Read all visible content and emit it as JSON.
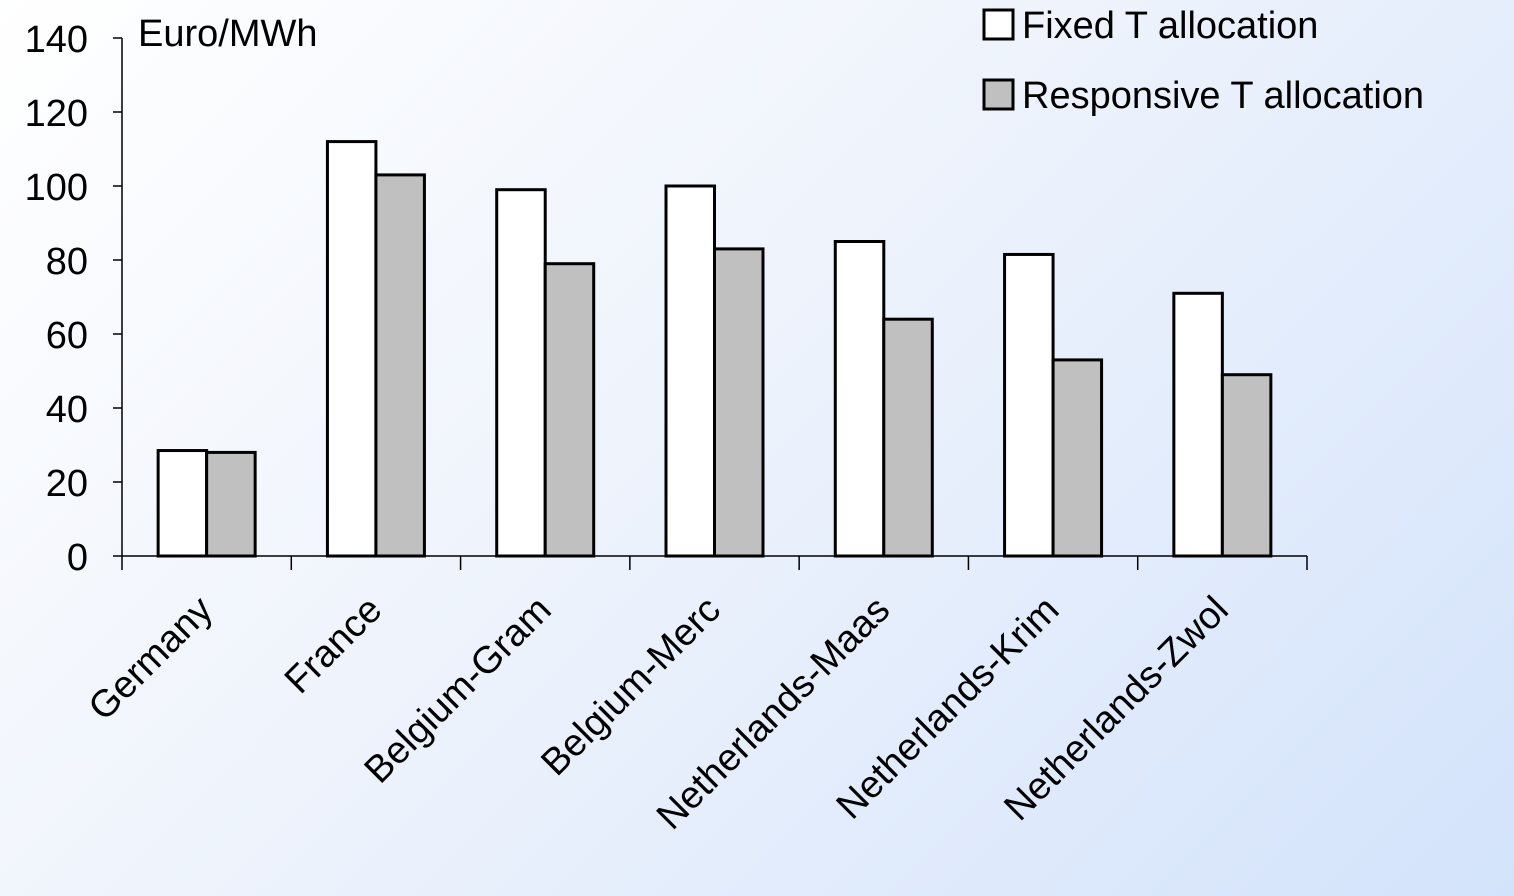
{
  "chart_data": {
    "type": "bar",
    "ylabel": "Euro/MWh",
    "ylim": [
      0,
      140
    ],
    "yticks": [
      0,
      20,
      40,
      60,
      80,
      100,
      120,
      140
    ],
    "categories": [
      "Germany",
      "France",
      "Belgium-Gram",
      "Belgium-Merc",
      "Netherlands-Maas",
      "Netherlands-Krim",
      "Netherlands-Zwol"
    ],
    "series": [
      {
        "name": "Fixed T allocation",
        "color": "#ffffff",
        "values": [
          28.5,
          112,
          99,
          100,
          85,
          81.5,
          71
        ]
      },
      {
        "name": "Responsive T allocation",
        "color": "#c0c0c0",
        "values": [
          28,
          103,
          79,
          83,
          64,
          53,
          49
        ]
      }
    ],
    "legend_position": "top-right",
    "grid": false
  }
}
